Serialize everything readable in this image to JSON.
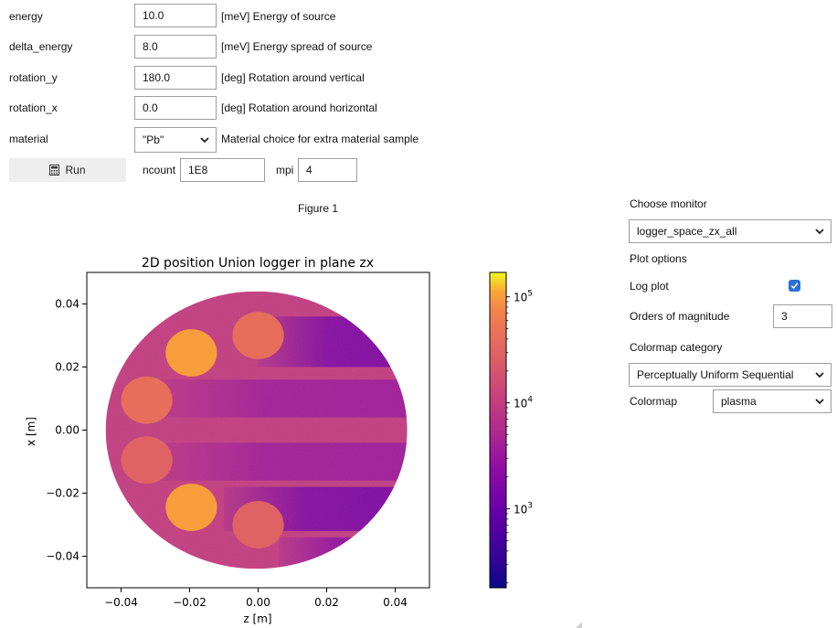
{
  "params": [
    {
      "label": "energy",
      "value": "10.0",
      "desc": "[meV] Energy of source"
    },
    {
      "label": "delta_energy",
      "value": "8.0",
      "desc": "[meV] Energy spread of source"
    },
    {
      "label": "rotation_y",
      "value": "180.0",
      "desc": "[deg] Rotation around vertical"
    },
    {
      "label": "rotation_x",
      "value": "0.0",
      "desc": "[deg] Rotation around horizontal"
    }
  ],
  "material": {
    "label": "material",
    "value": "\"Pb\"",
    "desc": "Material choice for extra material sample"
  },
  "run": {
    "label": "Run",
    "ncount_label": "ncount",
    "ncount_value": "1E8",
    "mpi_label": "mpi",
    "mpi_value": "4"
  },
  "figure_label": "Figure 1",
  "chart_data": {
    "type": "heatmap",
    "title": "2D position Union logger in plane zx",
    "xlabel": "z [m]",
    "ylabel": "x [m]",
    "xlim": [
      -0.05,
      0.05
    ],
    "ylim": [
      -0.05,
      0.05
    ],
    "xticks": [
      -0.04,
      -0.02,
      0.0,
      0.02,
      0.04
    ],
    "xtick_labels": [
      "−0.04",
      "−0.02",
      "0.00",
      "0.02",
      "0.04"
    ],
    "yticks": [
      0.04,
      0.02,
      0.0,
      -0.02,
      -0.04
    ],
    "ytick_labels": [
      "0.04",
      "0.02",
      "0.00",
      "−0.02",
      "−0.04"
    ],
    "colormap": "plasma",
    "log_scale": true,
    "colorbar_ticks": [
      {
        "label": "10",
        "exp": "5",
        "value": 100000
      },
      {
        "label": "10",
        "exp": "4",
        "value": 10000
      },
      {
        "label": "10",
        "exp": "3",
        "value": 1000
      }
    ],
    "colorbar_range": [
      180,
      170000
    ],
    "sample_circle": {
      "cx": -0.0005,
      "cy": 0.0,
      "r": 0.044,
      "value": 10000
    },
    "spots": [
      {
        "cx": 0.0,
        "cy": 0.03,
        "r": 0.0075,
        "value": 40000
      },
      {
        "cx": -0.0195,
        "cy": 0.0245,
        "r": 0.0075,
        "value": 100000
      },
      {
        "cx": -0.0325,
        "cy": 0.0095,
        "r": 0.0075,
        "value": 40000
      },
      {
        "cx": -0.0325,
        "cy": -0.0095,
        "r": 0.0075,
        "value": 30000
      },
      {
        "cx": -0.0195,
        "cy": -0.0245,
        "r": 0.0075,
        "value": 100000
      },
      {
        "cx": 0.0,
        "cy": -0.03,
        "r": 0.0075,
        "value": 30000
      }
    ]
  },
  "panel": {
    "choose_monitor_label": "Choose monitor",
    "monitor_value": "logger_space_zx_all",
    "plot_options_label": "Plot options",
    "log_plot_label": "Log plot",
    "log_plot_checked": true,
    "orders_label": "Orders of magnitude",
    "orders_value": "3",
    "colormap_category_label": "Colormap category",
    "colormap_category_value": "Perceptually Uniform Sequential",
    "colormap_label": "Colormap",
    "colormap_value": "plasma"
  },
  "colors": {
    "checkbox": "#2d6fd6",
    "button_bg": "#eeeeee"
  }
}
